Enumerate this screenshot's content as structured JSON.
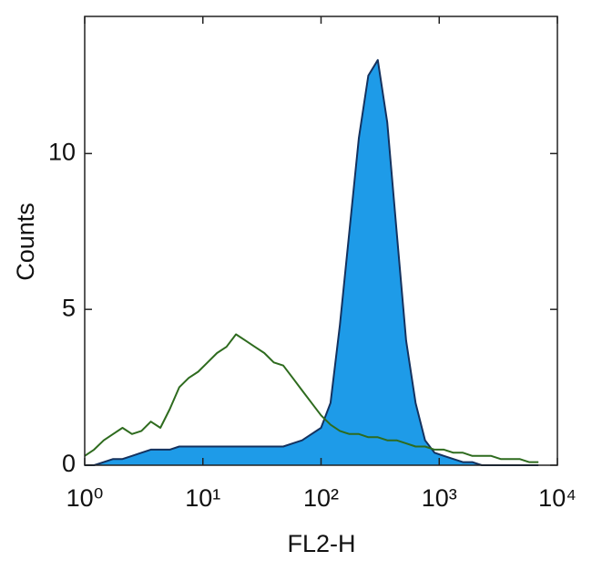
{
  "chart_data": {
    "type": "line",
    "x_label": "FL2-H",
    "y_label": "Counts",
    "x_scale": "log",
    "x": [
      1,
      1.2,
      1.45,
      1.74,
      2.09,
      2.51,
      3.02,
      3.63,
      4.37,
      5.25,
      6.31,
      7.59,
      9.12,
      10.96,
      13.18,
      15.85,
      19.05,
      22.91,
      27.54,
      33.11,
      39.81,
      47.86,
      57.54,
      69.18,
      83.18,
      100,
      120.2,
      144.5,
      173.8,
      208.9,
      251.2,
      302,
      363.1,
      436.5,
      524.8,
      631,
      758.6,
      912,
      1096,
      1318,
      1585,
      1905,
      2291,
      2754,
      3311,
      3981,
      4786,
      5754,
      6918
    ],
    "series": [
      {
        "color": "#14325f",
        "fill": "#1e9be8",
        "values": [
          0,
          0,
          0.1,
          0.2,
          0.2,
          0.3,
          0.4,
          0.5,
          0.5,
          0.5,
          0.6,
          0.6,
          0.6,
          0.6,
          0.6,
          0.6,
          0.6,
          0.6,
          0.6,
          0.6,
          0.6,
          0.6,
          0.7,
          0.8,
          1.0,
          1.2,
          2.0,
          4.5,
          7.5,
          10.5,
          12.5,
          13.0,
          11.0,
          7.5,
          4.0,
          2.0,
          0.8,
          0.4,
          0.3,
          0.2,
          0.1,
          0.1,
          0,
          0,
          0,
          0,
          0,
          0,
          0
        ]
      },
      {
        "color": "#2e6b1e",
        "values": [
          0.3,
          0.5,
          0.8,
          1.0,
          1.2,
          1.0,
          1.1,
          1.4,
          1.2,
          1.8,
          2.5,
          2.8,
          3.0,
          3.3,
          3.6,
          3.8,
          4.2,
          4.0,
          3.8,
          3.6,
          3.3,
          3.2,
          2.8,
          2.4,
          2.0,
          1.6,
          1.3,
          1.1,
          1.0,
          1.0,
          0.9,
          0.9,
          0.8,
          0.8,
          0.7,
          0.6,
          0.6,
          0.5,
          0.5,
          0.4,
          0.4,
          0.3,
          0.3,
          0.3,
          0.2,
          0.2,
          0.2,
          0.1,
          0.1
        ]
      }
    ],
    "xlim": [
      1,
      10000
    ],
    "xticks": [
      {
        "value": 1,
        "label": "10⁰"
      },
      {
        "value": 10,
        "label": "10¹"
      },
      {
        "value": 100,
        "label": "10²"
      },
      {
        "value": 1000,
        "label": "10³"
      },
      {
        "value": 10000,
        "label": "10⁴"
      }
    ],
    "ylim": [
      0,
      14.4
    ],
    "yticks": [
      0,
      5,
      10
    ]
  }
}
